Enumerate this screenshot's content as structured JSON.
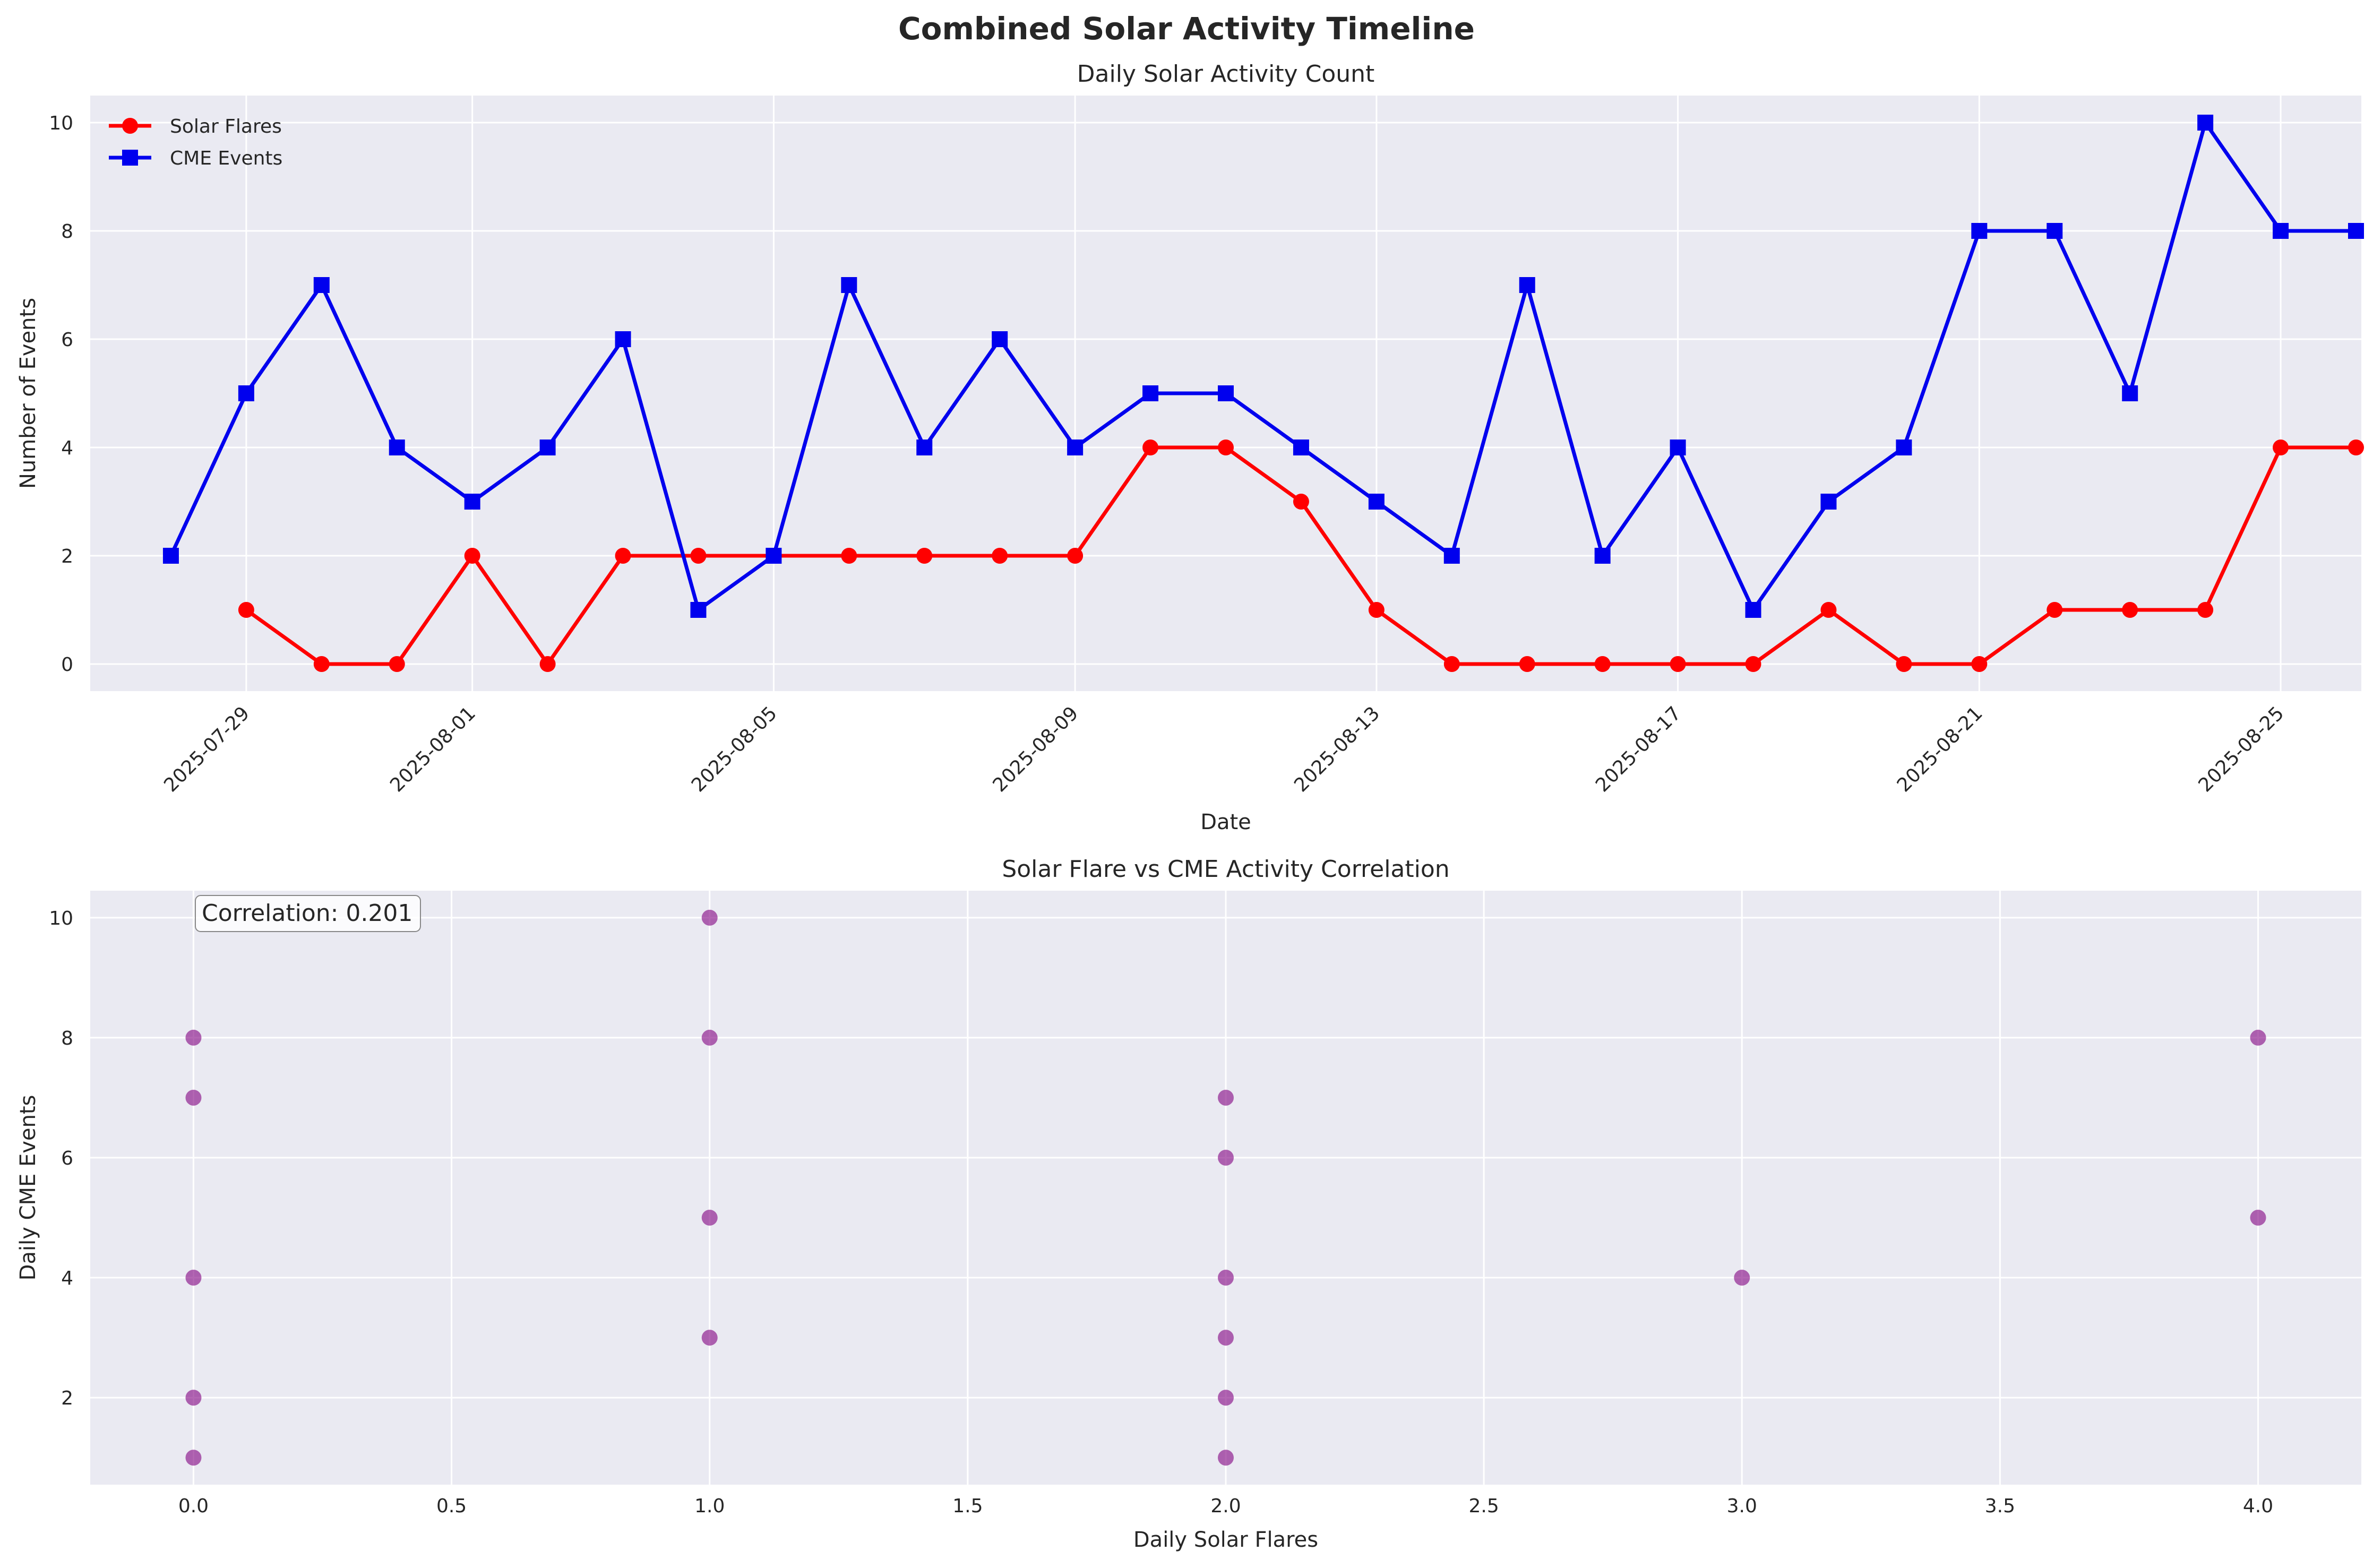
{
  "figure": {
    "title": "Combined Solar Activity Timeline",
    "colors": {
      "panel_bg": "#eaeaf2",
      "grid": "#ffffff",
      "flares": "#ff0000",
      "cme": "#0000ee",
      "scatter": "#800080",
      "text": "#262626"
    }
  },
  "chart_data": [
    {
      "type": "line",
      "title": "Daily Solar Activity Count",
      "xlabel": "Date",
      "ylabel": "Number of Events",
      "xlim": [
        "2025-07-27",
        "2025-08-26"
      ],
      "ylim": [
        -0.5,
        10.5
      ],
      "xticks": [
        "2025-07-29",
        "2025-08-01",
        "2025-08-05",
        "2025-08-09",
        "2025-08-13",
        "2025-08-17",
        "2025-08-21",
        "2025-08-25"
      ],
      "yticks": [
        0,
        2,
        4,
        6,
        8,
        10
      ],
      "grid": true,
      "legend": "top-left",
      "series": [
        {
          "name": "Solar Flares",
          "color": "#ff0000",
          "marker": "circle",
          "points": [
            [
              "2025-07-29",
              1
            ],
            [
              "2025-07-30",
              0
            ],
            [
              "2025-07-31",
              0
            ],
            [
              "2025-08-01",
              2
            ],
            [
              "2025-08-02",
              0
            ],
            [
              "2025-08-03",
              2
            ],
            [
              "2025-08-04",
              2
            ],
            [
              "2025-08-05",
              2
            ],
            [
              "2025-08-06",
              2
            ],
            [
              "2025-08-07",
              2
            ],
            [
              "2025-08-08",
              2
            ],
            [
              "2025-08-09",
              2
            ],
            [
              "2025-08-10",
              4
            ],
            [
              "2025-08-11",
              4
            ],
            [
              "2025-08-12",
              3
            ],
            [
              "2025-08-13",
              1
            ],
            [
              "2025-08-14",
              0
            ],
            [
              "2025-08-15",
              0
            ],
            [
              "2025-08-16",
              0
            ],
            [
              "2025-08-17",
              0
            ],
            [
              "2025-08-18",
              0
            ],
            [
              "2025-08-19",
              1
            ],
            [
              "2025-08-20",
              0
            ],
            [
              "2025-08-21",
              0
            ],
            [
              "2025-08-22",
              1
            ],
            [
              "2025-08-23",
              1
            ],
            [
              "2025-08-24",
              1
            ],
            [
              "2025-08-25",
              4
            ],
            [
              "2025-08-26",
              4
            ]
          ]
        },
        {
          "name": "CME Events",
          "color": "#0000ee",
          "marker": "square",
          "points": [
            [
              "2025-07-28",
              2
            ],
            [
              "2025-07-29",
              5
            ],
            [
              "2025-07-30",
              7
            ],
            [
              "2025-07-31",
              4
            ],
            [
              "2025-08-01",
              3
            ],
            [
              "2025-08-02",
              4
            ],
            [
              "2025-08-03",
              6
            ],
            [
              "2025-08-04",
              1
            ],
            [
              "2025-08-05",
              2
            ],
            [
              "2025-08-06",
              7
            ],
            [
              "2025-08-07",
              4
            ],
            [
              "2025-08-08",
              6
            ],
            [
              "2025-08-09",
              4
            ],
            [
              "2025-08-10",
              5
            ],
            [
              "2025-08-11",
              5
            ],
            [
              "2025-08-12",
              4
            ],
            [
              "2025-08-13",
              3
            ],
            [
              "2025-08-14",
              2
            ],
            [
              "2025-08-15",
              7
            ],
            [
              "2025-08-16",
              2
            ],
            [
              "2025-08-17",
              4
            ],
            [
              "2025-08-18",
              1
            ],
            [
              "2025-08-19",
              3
            ],
            [
              "2025-08-20",
              4
            ],
            [
              "2025-08-21",
              8
            ],
            [
              "2025-08-22",
              8
            ],
            [
              "2025-08-23",
              5
            ],
            [
              "2025-08-24",
              10
            ],
            [
              "2025-08-25",
              8
            ],
            [
              "2025-08-26",
              8
            ]
          ]
        }
      ]
    },
    {
      "type": "scatter",
      "title": "Solar Flare vs CME Activity Correlation",
      "xlabel": "Daily Solar Flares",
      "ylabel": "Daily CME Events",
      "xlim": [
        -0.2,
        4.2
      ],
      "ylim": [
        0.55,
        10.45
      ],
      "xticks": [
        "0.0",
        "0.5",
        "1.0",
        "1.5",
        "2.0",
        "2.5",
        "3.0",
        "3.5",
        "4.0"
      ],
      "yticks": [
        2,
        4,
        6,
        8,
        10
      ],
      "grid": true,
      "annotation": "Correlation: 0.201",
      "color": "#800080",
      "points": [
        [
          0,
          1
        ],
        [
          0,
          2
        ],
        [
          0,
          4
        ],
        [
          0,
          7
        ],
        [
          0,
          8
        ],
        [
          1,
          3
        ],
        [
          1,
          5
        ],
        [
          1,
          8
        ],
        [
          1,
          10
        ],
        [
          2,
          1
        ],
        [
          2,
          2
        ],
        [
          2,
          3
        ],
        [
          2,
          4
        ],
        [
          2,
          6
        ],
        [
          2,
          7
        ],
        [
          3,
          4
        ],
        [
          4,
          5
        ],
        [
          4,
          8
        ]
      ]
    }
  ]
}
